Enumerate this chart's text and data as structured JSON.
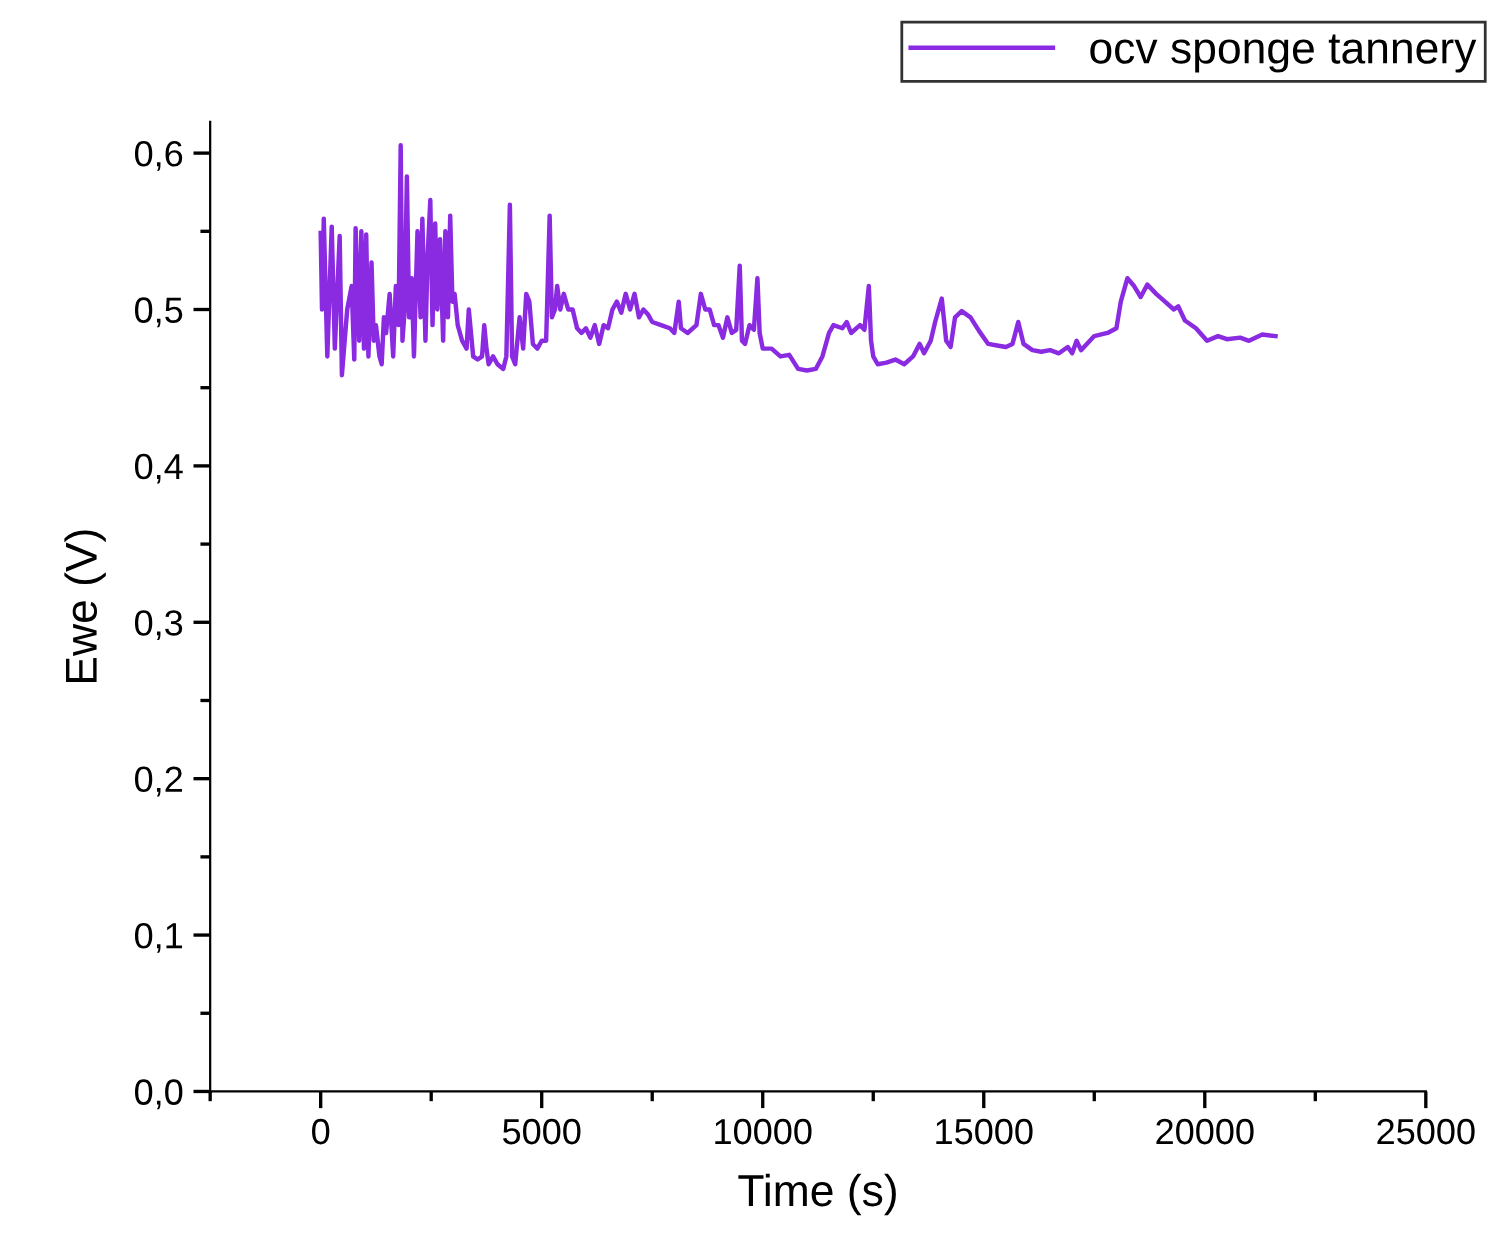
{
  "chart_data": {
    "type": "line",
    "xlabel": "Time (s)",
    "ylabel": "Ewe (V)",
    "xlim": [
      -2500,
      25000
    ],
    "ylim": [
      0,
      0.62
    ],
    "xticks": [
      {
        "value": -2500,
        "label": null
      },
      0,
      {
        "value": 2500,
        "label": null
      },
      5000,
      {
        "value": 7500,
        "label": null
      },
      10000,
      {
        "value": 12500,
        "label": null
      },
      15000,
      {
        "value": 17500,
        "label": null
      },
      20000,
      {
        "value": 22500,
        "label": null
      },
      25000
    ],
    "yticks": [
      {
        "value": 0,
        "label": "0,0"
      },
      {
        "value": 0.05,
        "label": null
      },
      {
        "value": 0.1,
        "label": "0,1"
      },
      {
        "value": 0.15,
        "label": null
      },
      {
        "value": 0.2,
        "label": "0,2"
      },
      {
        "value": 0.25,
        "label": null
      },
      {
        "value": 0.3,
        "label": "0,3"
      },
      {
        "value": 0.35,
        "label": null
      },
      {
        "value": 0.4,
        "label": "0,4"
      },
      {
        "value": 0.45,
        "label": null
      },
      {
        "value": 0.5,
        "label": "0,5"
      },
      {
        "value": 0.55,
        "label": null
      },
      {
        "value": 0.6,
        "label": "0,6"
      }
    ],
    "grid": false,
    "legend": "top right",
    "marker": "none",
    "line_style": "solid",
    "series": [
      {
        "name": "ocv sponge tannery",
        "color": "#8a2be2",
        "x": [
          0,
          30,
          70,
          150,
          250,
          320,
          430,
          480,
          600,
          700,
          760,
          790,
          870,
          920,
          980,
          1030,
          1080,
          1150,
          1200,
          1250,
          1330,
          1380,
          1430,
          1480,
          1560,
          1640,
          1700,
          1760,
          1810,
          1850,
          1900,
          1950,
          2000,
          2060,
          2110,
          2190,
          2260,
          2300,
          2370,
          2420,
          2480,
          2530,
          2590,
          2640,
          2700,
          2770,
          2820,
          2880,
          2930,
          2980,
          3030,
          3100,
          3200,
          3300,
          3350,
          3450,
          3550,
          3650,
          3700,
          3750,
          3800,
          3900,
          4000,
          4130,
          4200,
          4280,
          4330,
          4400,
          4500,
          4580,
          4650,
          4720,
          4800,
          4900,
          5000,
          5100,
          5180,
          5230,
          5300,
          5350,
          5420,
          5500,
          5600,
          5700,
          5800,
          5900,
          6000,
          6100,
          6200,
          6300,
          6400,
          6500,
          6600,
          6700,
          6800,
          6900,
          7000,
          7100,
          7200,
          7300,
          7400,
          7500,
          7700,
          7900,
          8000,
          8100,
          8150,
          8300,
          8500,
          8600,
          8700,
          8800,
          8900,
          9000,
          9100,
          9200,
          9300,
          9400,
          9480,
          9530,
          9600,
          9700,
          9800,
          9880,
          9930,
          10000,
          10200,
          10400,
          10600,
          10800,
          11000,
          11200,
          11350,
          11500,
          11600,
          11800,
          11900,
          12000,
          12200,
          12300,
          12400,
          12450,
          12500,
          12600,
          12800,
          13000,
          13200,
          13400,
          13550,
          13650,
          13800,
          13900,
          14050,
          14150,
          14250,
          14350,
          14500,
          14700,
          14900,
          15100,
          15300,
          15500,
          15650,
          15780,
          15900,
          16100,
          16300,
          16500,
          16700,
          16900,
          17000,
          17100,
          17200,
          17500,
          17800,
          18000,
          18100,
          18250,
          18400,
          18550,
          18700,
          18900,
          19100,
          19300,
          19400,
          19550,
          19800,
          20050,
          20300,
          20500,
          20800,
          21000,
          21300,
          21600
        ],
        "values": [
          0.549,
          0.5,
          0.558,
          0.47,
          0.553,
          0.475,
          0.547,
          0.458,
          0.5,
          0.515,
          0.468,
          0.552,
          0.48,
          0.55,
          0.475,
          0.548,
          0.47,
          0.53,
          0.48,
          0.49,
          0.47,
          0.465,
          0.495,
          0.485,
          0.51,
          0.47,
          0.515,
          0.49,
          0.605,
          0.48,
          0.5,
          0.585,
          0.495,
          0.52,
          0.47,
          0.55,
          0.495,
          0.558,
          0.48,
          0.535,
          0.57,
          0.49,
          0.555,
          0.5,
          0.545,
          0.48,
          0.55,
          0.495,
          0.56,
          0.505,
          0.51,
          0.49,
          0.48,
          0.475,
          0.5,
          0.47,
          0.468,
          0.47,
          0.49,
          0.475,
          0.465,
          0.47,
          0.465,
          0.462,
          0.47,
          0.567,
          0.47,
          0.465,
          0.495,
          0.475,
          0.51,
          0.505,
          0.478,
          0.475,
          0.48,
          0.48,
          0.56,
          0.495,
          0.5,
          0.515,
          0.5,
          0.51,
          0.5,
          0.5,
          0.488,
          0.485,
          0.488,
          0.482,
          0.49,
          0.478,
          0.49,
          0.488,
          0.5,
          0.505,
          0.498,
          0.51,
          0.5,
          0.51,
          0.495,
          0.5,
          0.497,
          0.492,
          0.49,
          0.488,
          0.485,
          0.505,
          0.488,
          0.485,
          0.49,
          0.51,
          0.5,
          0.5,
          0.49,
          0.49,
          0.482,
          0.495,
          0.485,
          0.487,
          0.528,
          0.48,
          0.478,
          0.49,
          0.487,
          0.52,
          0.485,
          0.475,
          0.475,
          0.47,
          0.471,
          0.462,
          0.461,
          0.462,
          0.47,
          0.485,
          0.49,
          0.488,
          0.492,
          0.485,
          0.49,
          0.487,
          0.515,
          0.48,
          0.47,
          0.465,
          0.466,
          0.468,
          0.465,
          0.47,
          0.478,
          0.472,
          0.48,
          0.492,
          0.507,
          0.48,
          0.476,
          0.495,
          0.499,
          0.495,
          0.486,
          0.478,
          0.477,
          0.476,
          0.478,
          0.492,
          0.478,
          0.474,
          0.473,
          0.474,
          0.472,
          0.476,
          0.472,
          0.48,
          0.474,
          0.483,
          0.485,
          0.488,
          0.505,
          0.52,
          0.515,
          0.508,
          0.516,
          0.51,
          0.505,
          0.5,
          0.502,
          0.493,
          0.488,
          0.48,
          0.483,
          0.481,
          0.482,
          0.48,
          0.484,
          0.483
        ]
      }
    ]
  }
}
